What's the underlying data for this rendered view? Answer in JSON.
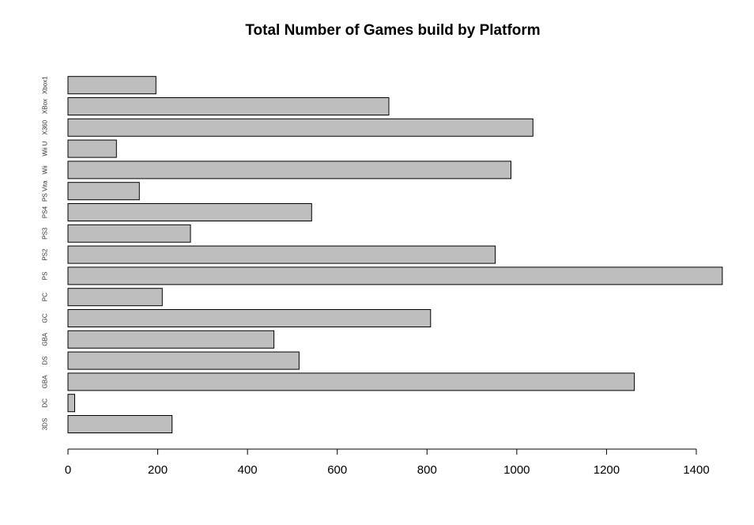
{
  "chart_data": {
    "type": "bar",
    "orientation": "horizontal",
    "title": "Total Number of Games build by Platform",
    "xlabel": "",
    "ylabel": "",
    "categories": [
      "3DS",
      "DC",
      "GBA",
      "DS",
      "GBA",
      "GC",
      "PC",
      "PS",
      "PS2",
      "PS3",
      "PS4",
      "PS Vita",
      "Wii",
      "Wii U",
      "X360",
      "XBox",
      "Xbox1"
    ],
    "values": [
      232,
      15,
      1262,
      515,
      459,
      808,
      210,
      1458,
      952,
      273,
      543,
      159,
      987,
      108,
      1036,
      715,
      196
    ],
    "xlim": [
      0,
      1460
    ],
    "xticks": [
      0,
      200,
      400,
      600,
      800,
      1000,
      1200,
      1400
    ],
    "bar_color": "#bebebe",
    "edge_color": "#000000",
    "grid": false
  }
}
